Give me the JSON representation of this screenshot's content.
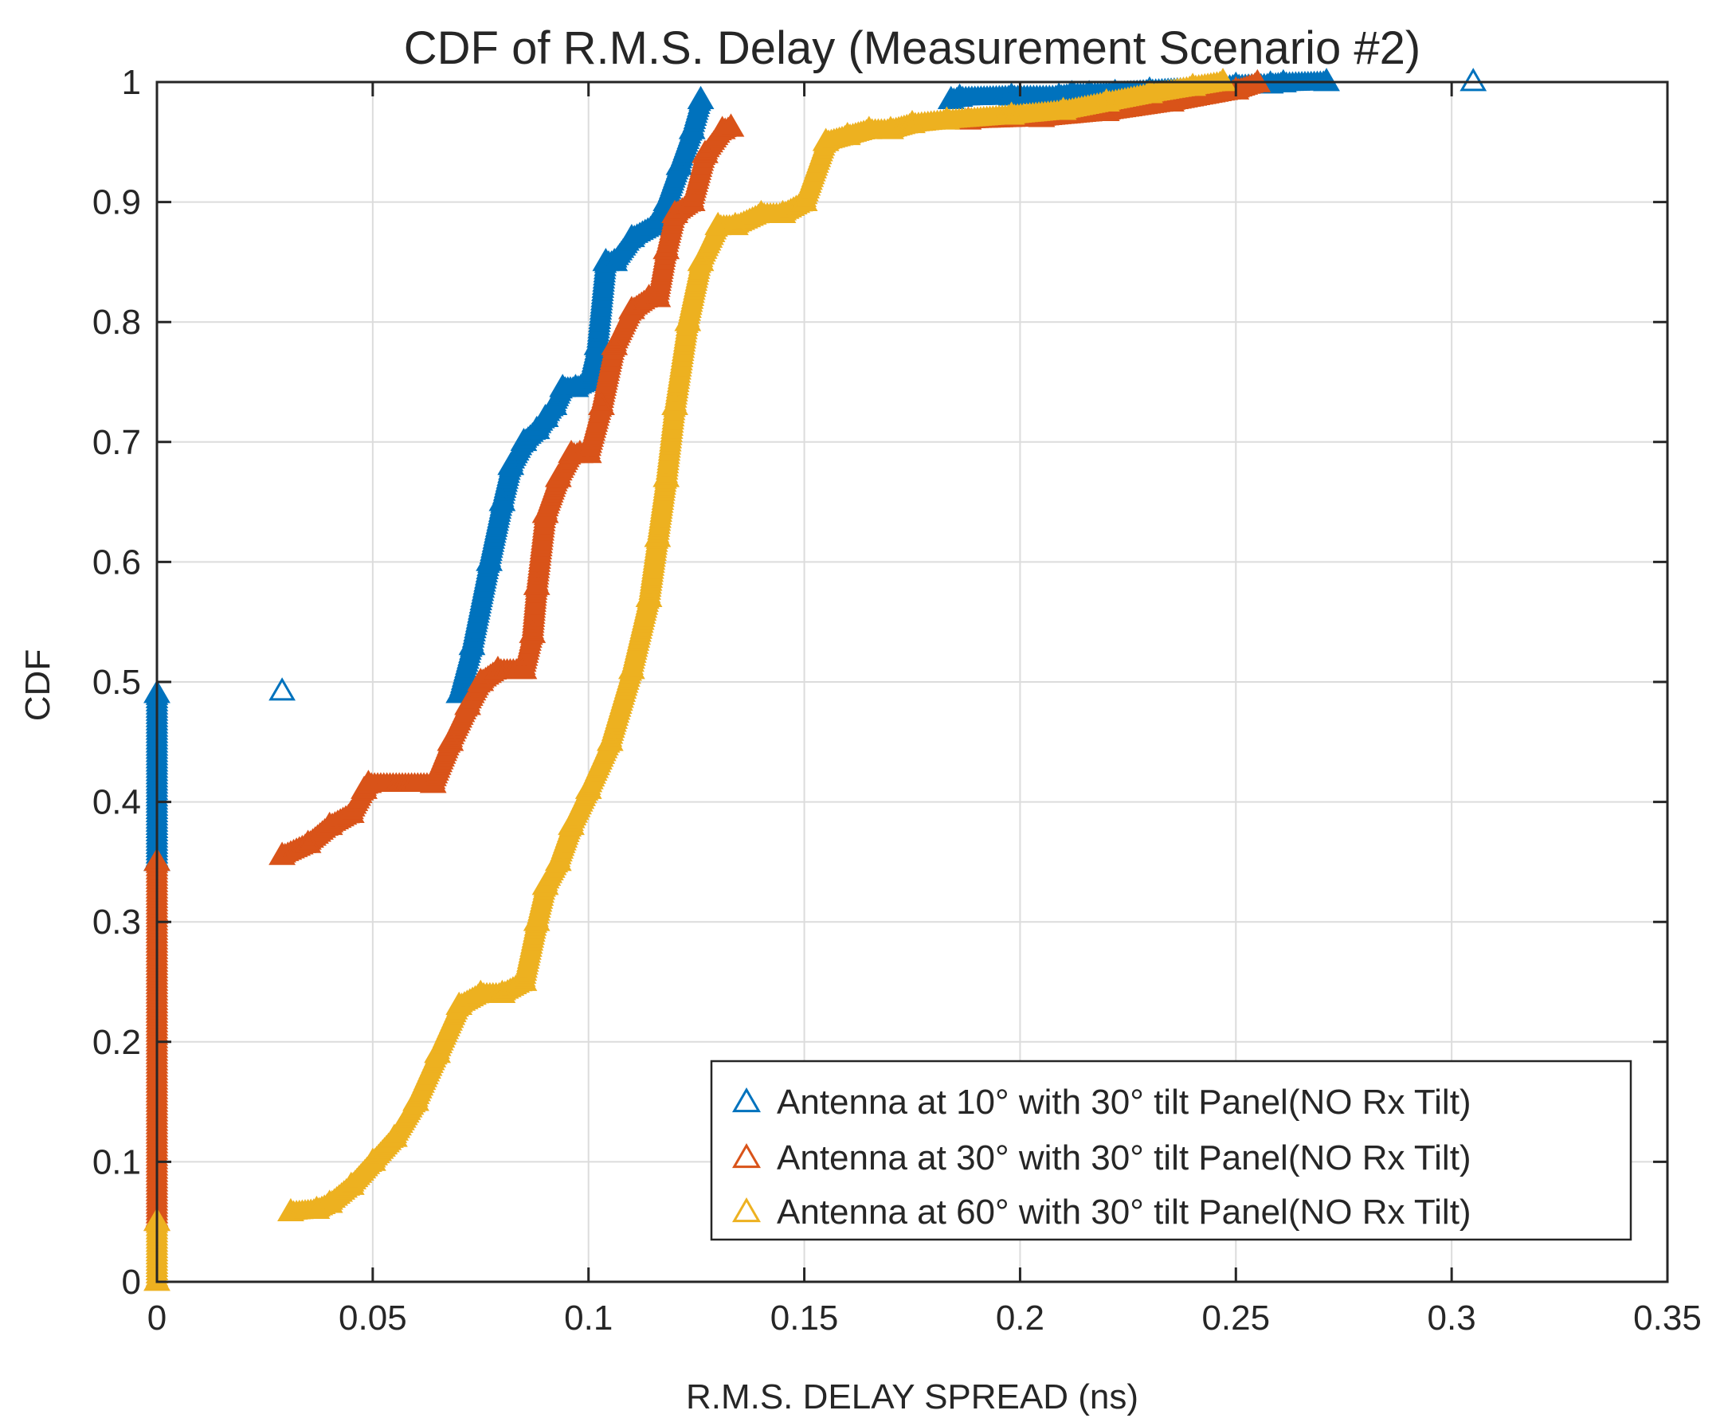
{
  "chart_data": {
    "type": "scatter",
    "title": "CDF of R.M.S. Delay (Measurement Scenario #2)",
    "xlabel": "R.M.S. DELAY SPREAD (ns)",
    "ylabel": "CDF",
    "xlim": [
      0,
      0.35
    ],
    "ylim": [
      0,
      1
    ],
    "xticks": [
      0,
      0.05,
      0.1,
      0.15,
      0.2,
      0.25,
      0.3,
      0.35
    ],
    "xtick_labels": [
      "0",
      "0.05",
      "0.1",
      "0.15",
      "0.2",
      "0.25",
      "0.3",
      "0.35"
    ],
    "yticks": [
      0,
      0.1,
      0.2,
      0.3,
      0.4,
      0.5,
      0.6,
      0.7,
      0.8,
      0.9,
      1
    ],
    "ytick_labels": [
      "0",
      "0.1",
      "0.2",
      "0.3",
      "0.4",
      "0.5",
      "0.6",
      "0.7",
      "0.8",
      "0.9",
      "1"
    ],
    "grid": true,
    "legend_position": "bottom-right",
    "marker": "triangle",
    "series": [
      {
        "name": "Antenna at 10° with 30° tilt Panel(NO Rx Tilt)",
        "color": "#0072BD",
        "x": [
          0,
          0,
          0.029,
          0.07,
          0.073,
          0.077,
          0.08,
          0.082,
          0.085,
          0.088,
          0.09,
          0.092,
          0.094,
          0.097,
          0.1,
          0.102,
          0.104,
          0.106,
          0.11,
          0.115,
          0.118,
          0.121,
          0.124,
          0.126,
          0.184,
          0.186,
          0.198,
          0.209,
          0.212,
          0.216,
          0.222,
          0.23,
          0.24,
          0.25,
          0.258,
          0.261,
          0.271,
          0.305
        ],
        "y": [
          0.35,
          0.49,
          0.492,
          0.49,
          0.53,
          0.6,
          0.65,
          0.68,
          0.7,
          0.71,
          0.72,
          0.73,
          0.745,
          0.745,
          0.75,
          0.78,
          0.85,
          0.85,
          0.87,
          0.88,
          0.9,
          0.93,
          0.96,
          0.985,
          0.985,
          0.987,
          0.988,
          0.988,
          0.99,
          0.99,
          0.991,
          0.993,
          0.995,
          0.997,
          0.998,
          0.999,
          1.0,
          1.0
        ]
      },
      {
        "name": "Antenna at 30° with 30° tilt Panel(NO Rx Tilt)",
        "color": "#D95319",
        "x": [
          0,
          0,
          0.029,
          0.035,
          0.04,
          0.045,
          0.048,
          0.049,
          0.064,
          0.068,
          0.072,
          0.075,
          0.079,
          0.084,
          0.085,
          0.087,
          0.088,
          0.09,
          0.093,
          0.096,
          0.098,
          0.1,
          0.103,
          0.106,
          0.11,
          0.114,
          0.116,
          0.118,
          0.12,
          0.124,
          0.127,
          0.131,
          0.133,
          0.188,
          0.205,
          0.22,
          0.235,
          0.25,
          0.255
        ],
        "y": [
          0.05,
          0.35,
          0.355,
          0.365,
          0.38,
          0.39,
          0.41,
          0.415,
          0.415,
          0.45,
          0.48,
          0.5,
          0.51,
          0.51,
          0.51,
          0.54,
          0.58,
          0.64,
          0.67,
          0.69,
          0.69,
          0.69,
          0.73,
          0.78,
          0.81,
          0.82,
          0.82,
          0.86,
          0.89,
          0.9,
          0.94,
          0.96,
          0.962,
          0.968,
          0.97,
          0.975,
          0.983,
          0.993,
          0.999
        ]
      },
      {
        "name": "Antenna at 60° with 30° tilt Panel(NO Rx Tilt)",
        "color": "#EDB120",
        "x": [
          0,
          0,
          0.031,
          0.037,
          0.04,
          0.045,
          0.05,
          0.055,
          0.06,
          0.065,
          0.07,
          0.075,
          0.08,
          0.085,
          0.088,
          0.09,
          0.093,
          0.096,
          0.1,
          0.105,
          0.11,
          0.114,
          0.116,
          0.118,
          0.12,
          0.123,
          0.126,
          0.13,
          0.134,
          0.14,
          0.145,
          0.15,
          0.155,
          0.16,
          0.165,
          0.17,
          0.175,
          0.183,
          0.198,
          0.21,
          0.22,
          0.23,
          0.24,
          0.247
        ],
        "y": [
          0,
          0.05,
          0.058,
          0.06,
          0.065,
          0.08,
          0.1,
          0.12,
          0.15,
          0.19,
          0.23,
          0.24,
          0.24,
          0.25,
          0.3,
          0.33,
          0.35,
          0.38,
          0.41,
          0.45,
          0.51,
          0.57,
          0.62,
          0.67,
          0.73,
          0.8,
          0.85,
          0.88,
          0.88,
          0.89,
          0.89,
          0.9,
          0.95,
          0.955,
          0.96,
          0.96,
          0.965,
          0.968,
          0.972,
          0.976,
          0.983,
          0.99,
          0.996,
          1.0
        ]
      }
    ]
  }
}
